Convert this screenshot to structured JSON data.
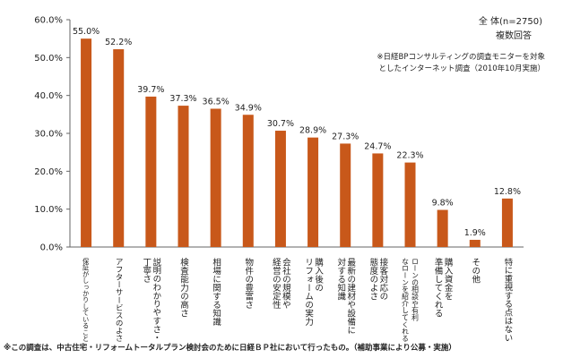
{
  "chart_data": {
    "type": "bar",
    "ylim": [
      0,
      60
    ],
    "yticks": [
      "0.0%",
      "10.0%",
      "20.0%",
      "30.0%",
      "40.0%",
      "50.0%",
      "60.0%"
    ],
    "grid": false,
    "bar_color": "#C8581A",
    "categories": [
      [
        "保証がしっかりしていること"
      ],
      [
        "アフターサービスのよさ"
      ],
      [
        "説明のわかりやすさ・",
        "丁寧さ"
      ],
      [
        "検査能力の高さ"
      ],
      [
        "相場に関する知識"
      ],
      [
        "物件の豊富さ"
      ],
      [
        "会社の規模や",
        "経営の安定性"
      ],
      [
        "購入後の",
        "リフォームの実力"
      ],
      [
        "最新の建材や設備に",
        "対する知識"
      ],
      [
        "接客対応の",
        "態度のよさ"
      ],
      [
        "ローンの相談や有利",
        "なローンを紹介してくれる"
      ],
      [
        "購入資金を",
        "準備してくれる"
      ],
      [
        "その他"
      ],
      [
        "特に重視する点はない"
      ]
    ],
    "values": [
      55.0,
      52.2,
      39.7,
      37.3,
      36.5,
      34.9,
      30.7,
      28.9,
      27.3,
      24.7,
      22.3,
      9.8,
      1.9,
      12.8
    ],
    "value_labels": [
      "55.0%",
      "52.2%",
      "39.7%",
      "37.3%",
      "36.5%",
      "34.9%",
      "30.7%",
      "28.9%",
      "27.3%",
      "24.7%",
      "22.3%",
      "9.8%",
      "1.9%",
      "12.8%"
    ]
  },
  "legend": {
    "line1": "全 体(n=2750)",
    "line2": "複数回答"
  },
  "note": {
    "line1": "※日経BPコンサルティングの調査モニターを対象",
    "line2": "としたインターネット調査（2010年10月実施）"
  },
  "footer": "※この調査は、中古住宅・リフォームトータルプラン検討会のために日経ＢＰ社において行ったもの。（補助事業により公募・実施）"
}
